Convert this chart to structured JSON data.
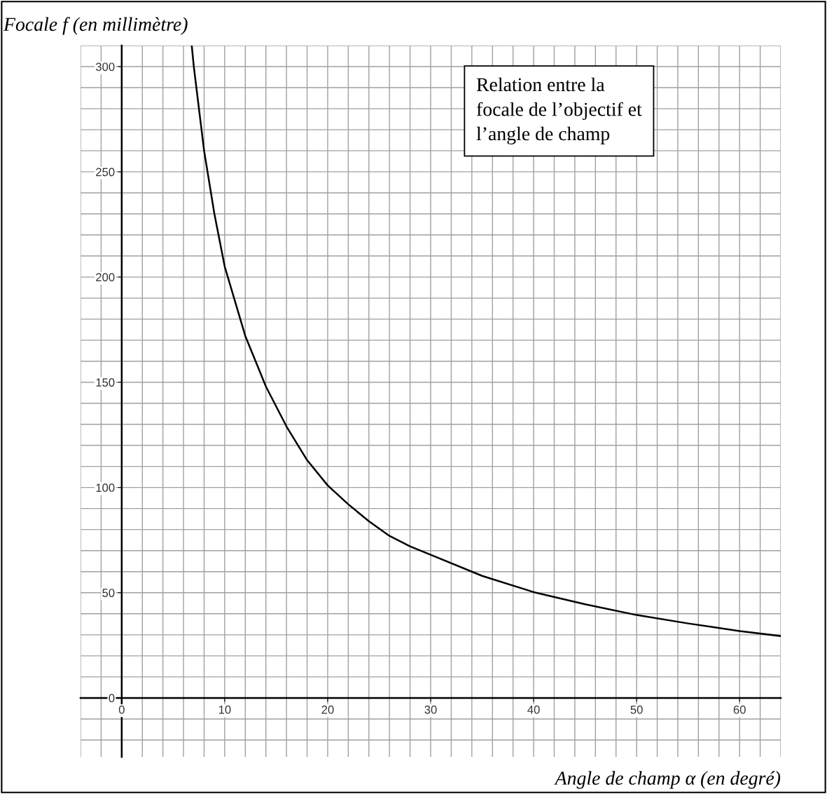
{
  "chart_data": {
    "type": "line",
    "xlabel": "Angle de champ α (en degré)",
    "ylabel": "Focale f (en millimètre)",
    "annotations": [
      "Relation entre la\nfocale de l’objectif et\nl’angle de champ"
    ],
    "x": [
      6.8,
      7,
      8,
      9,
      10,
      12,
      14,
      16,
      18,
      20,
      22,
      24,
      26,
      28,
      30,
      35,
      40,
      45,
      50,
      55,
      60,
      64
    ],
    "series": [
      {
        "color": "#000000",
        "values": [
          310,
          300,
          260,
          230,
          205,
          172,
          148,
          129,
          113,
          101,
          92,
          84,
          77,
          72,
          68,
          58,
          50.3,
          44.5,
          39.4,
          35.4,
          31.8,
          29.4
        ]
      }
    ],
    "xlim": [
      -4,
      64
    ],
    "ylim": [
      -28,
      310
    ],
    "xticks": [
      0,
      10,
      20,
      30,
      40,
      50,
      60
    ],
    "yticks": [
      0,
      50,
      100,
      150,
      200,
      250,
      300
    ],
    "grid": true,
    "legend": false,
    "marker": "none",
    "line_style": "solid"
  }
}
